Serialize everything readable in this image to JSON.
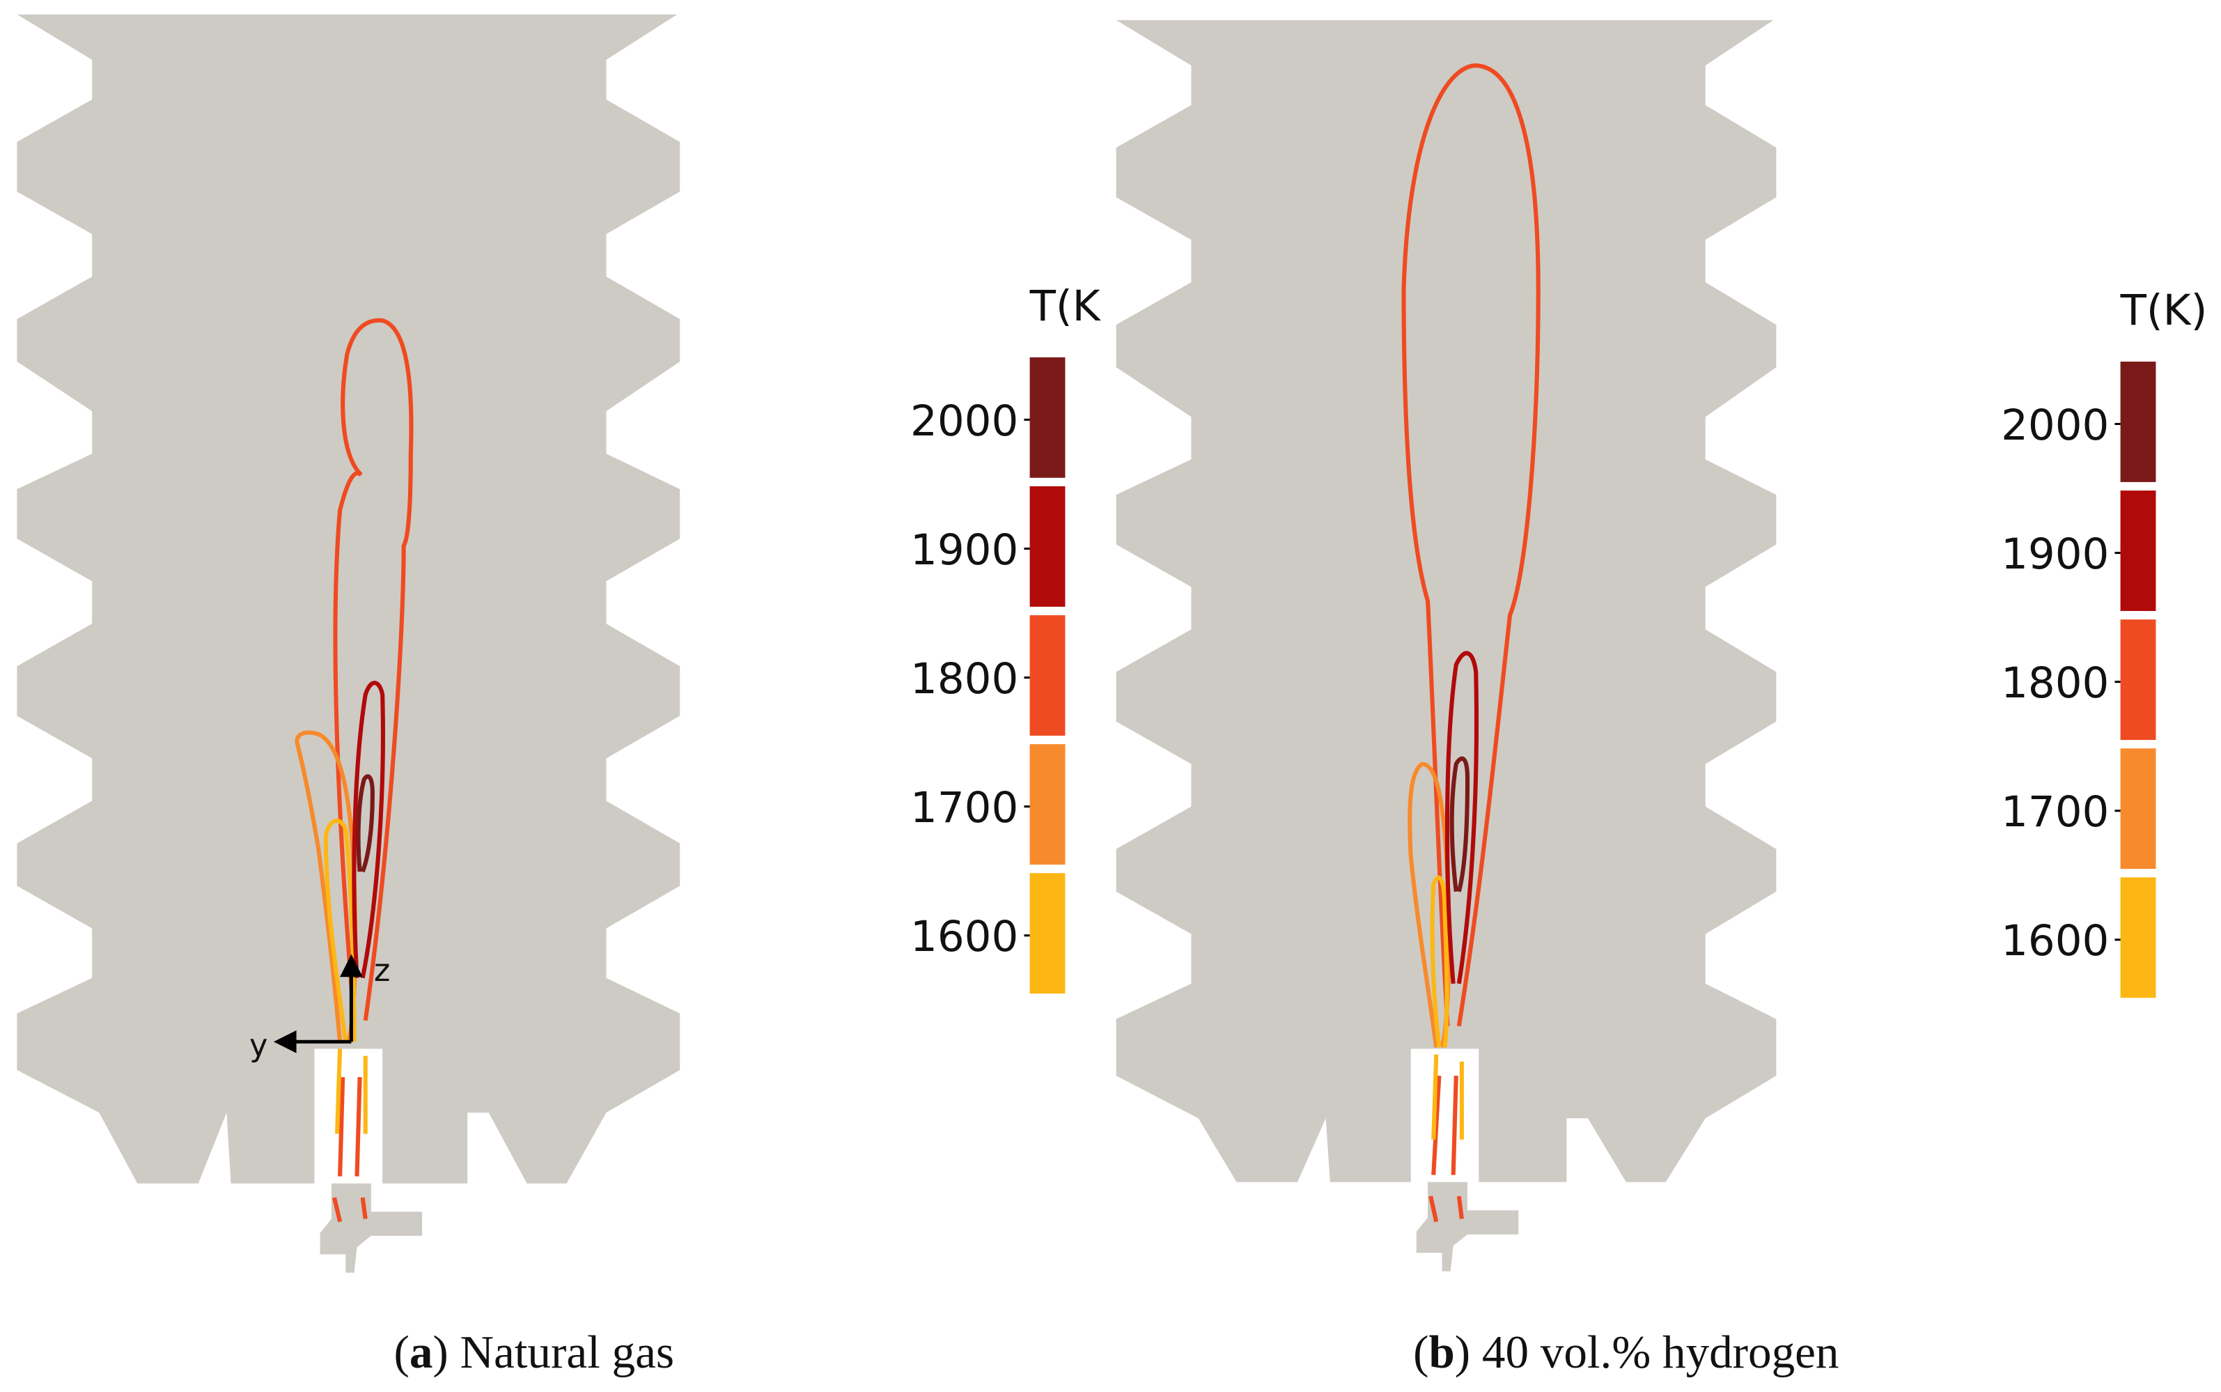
{
  "panels": [
    {
      "caption": [
        "(",
        "a",
        ")",
        " Natural gas"
      ],
      "legend_title": "T(K",
      "legend_labels": [
        "2000",
        "1900",
        "1800",
        "1700",
        "1600"
      ],
      "axis_labels": [
        "z",
        "y"
      ]
    },
    {
      "caption": [
        "(",
        "b",
        ")",
        " 40 vol.% hydrogen"
      ],
      "legend_title": "T(K)",
      "legend_labels": [
        "2000",
        "1900",
        "1800",
        "1700",
        "1600"
      ]
    }
  ]
}
